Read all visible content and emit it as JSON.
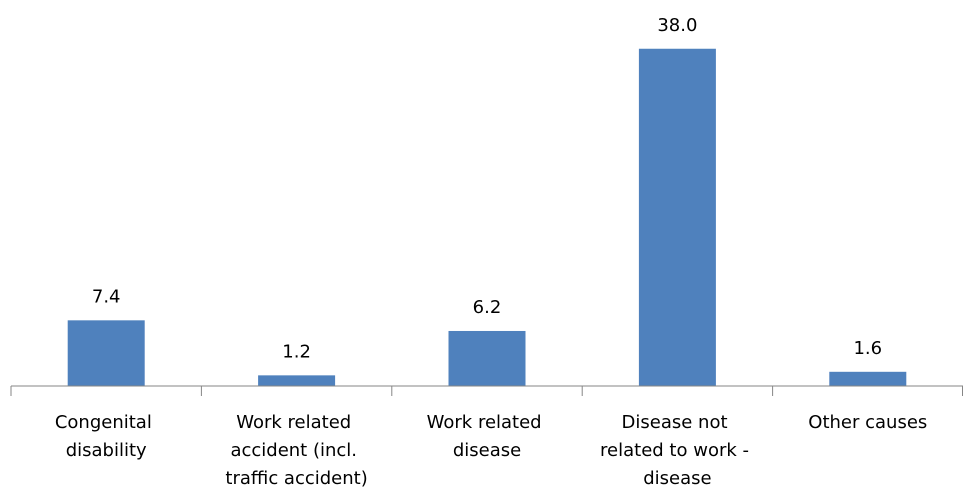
{
  "chart_data": {
    "type": "bar",
    "categories": [
      "Congenital disability",
      "Work related accident (incl. traffic accident)",
      "Work related disease",
      "Disease not related to work - disease",
      "Other causes"
    ],
    "values": [
      7.4,
      1.2,
      6.2,
      38.0,
      1.6
    ],
    "value_labels": [
      "7.4",
      "1.2",
      "6.2",
      "38.0",
      "1.6"
    ],
    "color": "#4f81bd",
    "ylim": [
      0,
      40
    ]
  }
}
